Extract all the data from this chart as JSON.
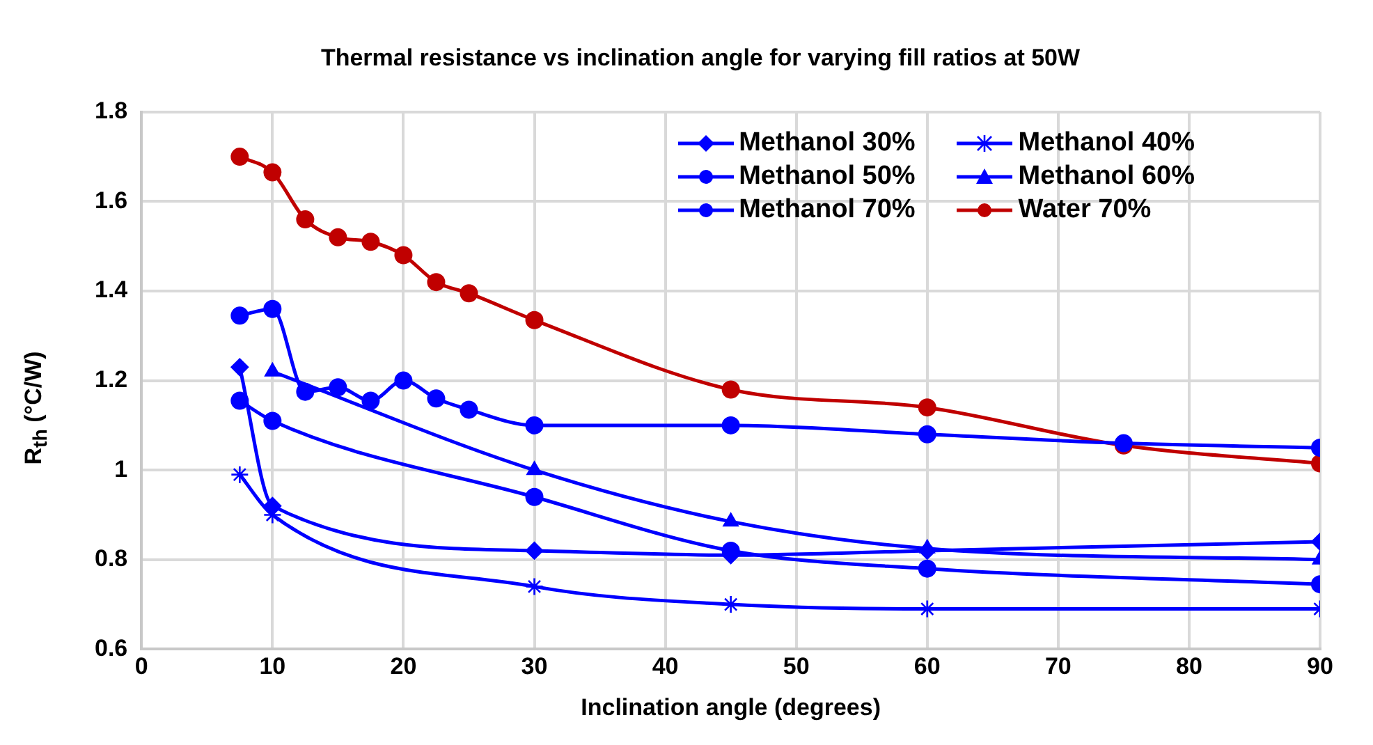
{
  "chart_data": {
    "type": "line",
    "title": "Thermal resistance vs inclination angle for varying fill ratios at 50W",
    "xlabel": "Inclination angle (degrees)",
    "ylabel": "R$_{th}$ (°C/W)",
    "xlim": [
      0,
      90
    ],
    "xticks": [
      0,
      10,
      20,
      30,
      40,
      50,
      60,
      70,
      80,
      90
    ],
    "ylim": [
      0.6,
      1.8
    ],
    "yticks": [
      0.6,
      0.8,
      1,
      1.2,
      1.4,
      1.6,
      1.8
    ],
    "grid": true,
    "legend": "top right",
    "series": [
      {
        "name": "Methanol 30%",
        "color": "#0000ff",
        "marker": "diamond",
        "x": [
          7.5,
          10,
          30,
          45,
          60,
          90
        ],
        "values": [
          1.23,
          0.92,
          0.82,
          0.81,
          0.82,
          0.84
        ]
      },
      {
        "name": "Methanol 40%",
        "color": "#0000ff",
        "marker": "cross",
        "x": [
          7.5,
          10,
          30,
          45,
          60,
          90
        ],
        "values": [
          0.99,
          0.9,
          0.74,
          0.7,
          0.69,
          0.69
        ]
      },
      {
        "name": "Methanol 50%",
        "color": "#0000ff",
        "marker": "circle",
        "x": [
          7.5,
          10,
          30,
          45,
          60,
          90
        ],
        "values": [
          1.155,
          1.11,
          0.94,
          0.82,
          0.78,
          0.745
        ]
      },
      {
        "name": "Methanol 60%",
        "color": "#0000ff",
        "marker": "triangle",
        "x": [
          10,
          30,
          45,
          60,
          90
        ],
        "values": [
          1.22,
          1.0,
          0.885,
          0.825,
          0.8
        ]
      },
      {
        "name": "Methanol 70%",
        "color": "#0000ff",
        "marker": "circle",
        "x": [
          7.5,
          10,
          12.5,
          15,
          17.5,
          20,
          22.5,
          25,
          30,
          45,
          60,
          75,
          90
        ],
        "values": [
          1.345,
          1.36,
          1.175,
          1.185,
          1.155,
          1.2,
          1.16,
          1.135,
          1.1,
          1.1,
          1.08,
          1.06,
          1.05
        ]
      },
      {
        "name": "Water 70%",
        "color": "#c00000",
        "marker": "circle",
        "x": [
          7.5,
          10,
          12.5,
          15,
          17.5,
          20,
          22.5,
          25,
          30,
          45,
          60,
          75,
          90
        ],
        "values": [
          1.7,
          1.665,
          1.56,
          1.52,
          1.51,
          1.48,
          1.42,
          1.395,
          1.335,
          1.18,
          1.14,
          1.055,
          1.015
        ]
      }
    ]
  }
}
